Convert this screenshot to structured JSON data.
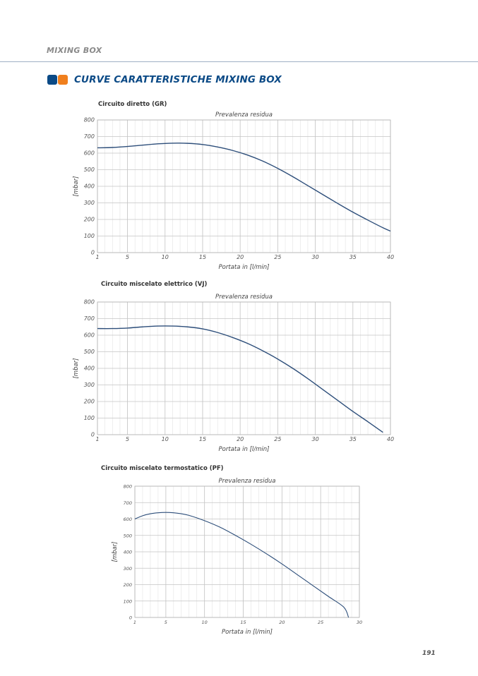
{
  "header": {
    "label": "MIXING BOX"
  },
  "section": {
    "title": "CURVE CARATTERISTICHE MIXING BOX",
    "icon_colors": [
      "#0b4a86",
      "#f07f1d"
    ]
  },
  "page_number": "191",
  "colors": {
    "curve": "#2d4e7a",
    "grid_major": "#c4c4c4",
    "grid_minor": "#e3e3e3",
    "axis_text": "#555555"
  },
  "chart_data": [
    {
      "type": "line",
      "title": "Circuito diretto (GR)",
      "subtitle": "Prevalenza residua",
      "xlabel": "Portata in [l/min]",
      "ylabel": "[mbar]",
      "xlim": [
        1,
        40
      ],
      "ylim": [
        0,
        800
      ],
      "xticks": [
        1,
        5,
        10,
        15,
        20,
        25,
        30,
        35,
        40
      ],
      "yticks": [
        0,
        100,
        200,
        300,
        400,
        500,
        600,
        700,
        800
      ],
      "grid": true,
      "series": [
        {
          "x": [
            1,
            3,
            5,
            7,
            9,
            11,
            13,
            15,
            17,
            19,
            21,
            23,
            25,
            27,
            29,
            31,
            33,
            35,
            37,
            39,
            40
          ],
          "y": [
            632,
            634,
            640,
            648,
            656,
            660,
            659,
            652,
            637,
            616,
            588,
            552,
            508,
            458,
            404,
            350,
            296,
            244,
            196,
            150,
            130
          ]
        }
      ]
    },
    {
      "type": "line",
      "title": "Circuito miscelato elettrico (VJ)",
      "subtitle": "Prevalenza residua",
      "xlabel": "Portata in [l/min]",
      "ylabel": "[mbar]",
      "xlim": [
        1,
        40
      ],
      "ylim": [
        0,
        800
      ],
      "xticks": [
        1,
        5,
        10,
        15,
        20,
        25,
        30,
        35,
        40
      ],
      "yticks": [
        0,
        100,
        200,
        300,
        400,
        500,
        600,
        700,
        800
      ],
      "grid": true,
      "series": [
        {
          "x": [
            1,
            3,
            5,
            7,
            9,
            11,
            13,
            15,
            17,
            19,
            21,
            23,
            25,
            27,
            29,
            31,
            33,
            35,
            37,
            39
          ],
          "y": [
            640,
            640,
            643,
            650,
            655,
            655,
            650,
            638,
            616,
            586,
            550,
            506,
            456,
            400,
            338,
            272,
            206,
            140,
            78,
            14
          ]
        }
      ]
    },
    {
      "type": "line",
      "title": "Circuito miscelato termostatico (PF)",
      "subtitle": "Prevalenza residua",
      "xlabel": "Portata in [l/min]",
      "ylabel": "[mbar]",
      "xlim": [
        1,
        30
      ],
      "ylim": [
        0,
        800
      ],
      "xticks": [
        1,
        5,
        10,
        15,
        20,
        25,
        30
      ],
      "yticks": [
        0,
        100,
        200,
        300,
        400,
        500,
        600,
        700,
        800
      ],
      "grid": true,
      "series": [
        {
          "x": [
            1,
            2,
            3,
            4,
            5,
            6,
            7,
            8,
            10,
            12,
            14,
            16,
            18,
            20,
            22,
            24,
            26,
            28,
            28.6
          ],
          "y": [
            600,
            620,
            632,
            638,
            640,
            638,
            632,
            622,
            590,
            550,
            500,
            446,
            388,
            326,
            260,
            194,
            128,
            62,
            0
          ]
        }
      ]
    }
  ]
}
